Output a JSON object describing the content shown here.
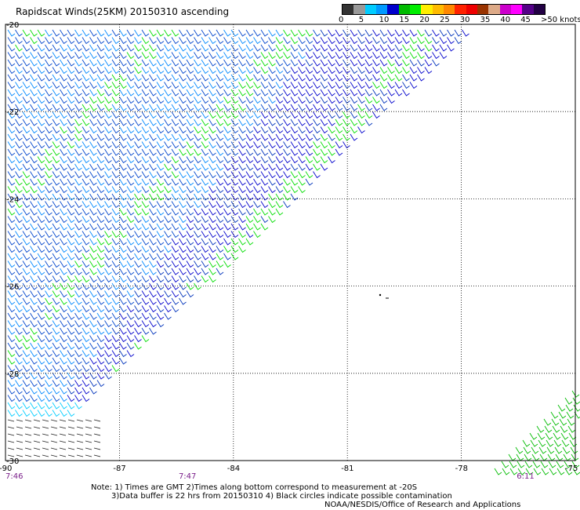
{
  "header": {
    "title": "Rapidscat Winds(25KM) 20150310 ascending"
  },
  "color_scale": {
    "colors": [
      "#333333",
      "#999999",
      "#00ccff",
      "#0099ff",
      "#0000cc",
      "#00bb00",
      "#00ee00",
      "#ffee00",
      "#ffbb00",
      "#ff8800",
      "#ff2200",
      "#ee0000",
      "#993300",
      "#ddaa88",
      "#cc00cc",
      "#ff00ff",
      "#550088",
      "#220044"
    ],
    "labels": [
      {
        "text": "0",
        "pos": 0.0
      },
      {
        "text": "5",
        "pos": 0.1
      },
      {
        "text": "10",
        "pos": 0.2
      },
      {
        "text": "15",
        "pos": 0.3
      },
      {
        "text": "20",
        "pos": 0.4
      },
      {
        "text": "25",
        "pos": 0.5
      },
      {
        "text": "30",
        "pos": 0.6
      },
      {
        "text": "35",
        "pos": 0.7
      },
      {
        "text": "40",
        "pos": 0.8
      },
      {
        "text": "45",
        "pos": 0.9
      },
      {
        "text": ">50 knots",
        "pos": 1.0
      }
    ]
  },
  "map": {
    "lat_labels": [
      {
        "text": "-20",
        "value": -20
      },
      {
        "text": "-22",
        "value": -22
      },
      {
        "text": "-24",
        "value": -24
      },
      {
        "text": "-26",
        "value": -26
      },
      {
        "text": "-28",
        "value": -28
      },
      {
        "text": "-30",
        "value": -30
      }
    ],
    "lon_labels": [
      {
        "text": "-90",
        "value": -90
      },
      {
        "text": "-87",
        "value": -87
      },
      {
        "text": "-84",
        "value": -84
      },
      {
        "text": "-81",
        "value": -81
      },
      {
        "text": "-78",
        "value": -78
      },
      {
        "text": "-75",
        "value": -75
      }
    ],
    "time_labels": [
      {
        "text": "7:46",
        "lon": -90
      },
      {
        "text": "7:47",
        "lon": -85.4
      },
      {
        "text": "6:11",
        "lon": -76.5
      }
    ]
  },
  "notes": {
    "line1": "Note: 1) Times are GMT 2)Times along bottom correspond to measurement at -20S",
    "line2": "3)Data buffer is 22 hrs from 20150310 4) Black circles indicate possible contamination",
    "credit": "NOAA/NESDIS/Office of Research and Applications"
  }
}
